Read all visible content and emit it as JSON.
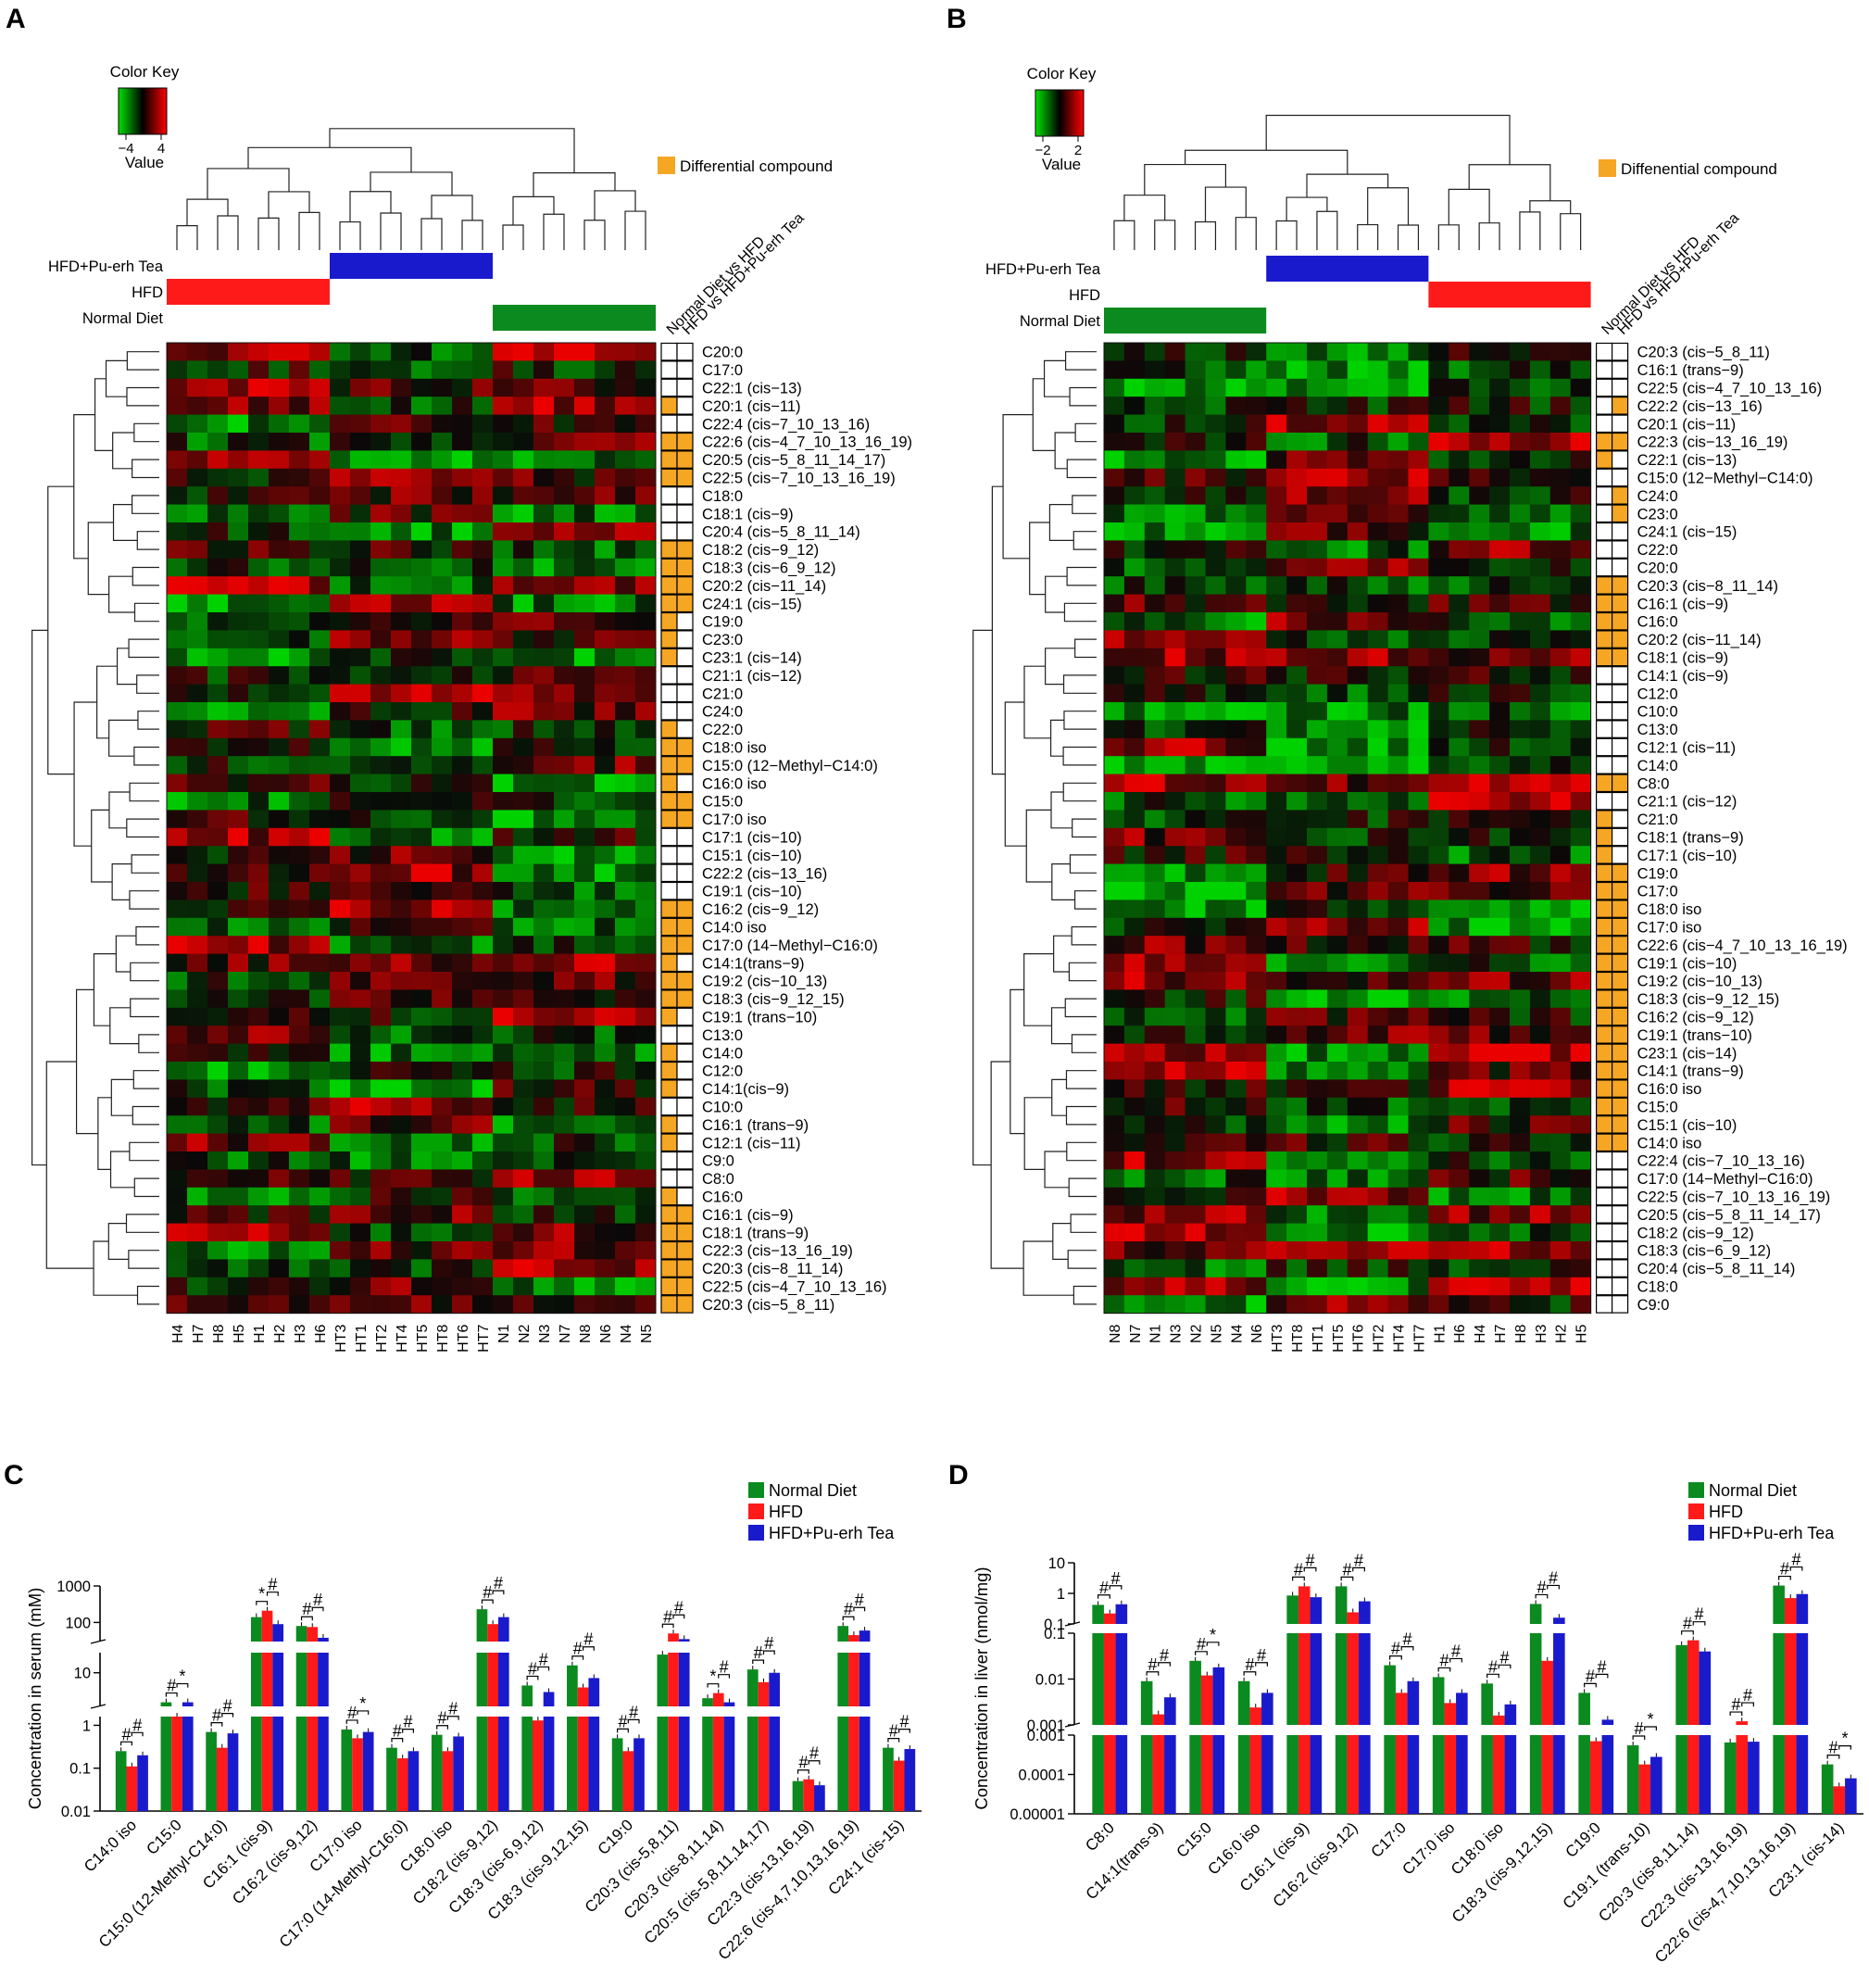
{
  "panel_labels": [
    "A",
    "B",
    "C",
    "D"
  ],
  "colors": {
    "normal": "#0a8a1f",
    "hfd": "#ff1a1a",
    "tea": "#1a1acd",
    "diff": "#f5a623"
  },
  "chart_data": [
    {
      "panel": "A",
      "type": "heatmap",
      "color_key": {
        "title": "Color Key",
        "label": "Value",
        "ticks": [
          "−4",
          "4"
        ]
      },
      "legend": "Differential compound",
      "group_labels": [
        "HFD+Pu-erh Tea",
        "HFD",
        "Normal Diet"
      ],
      "comparison_labels": [
        "Normal Diet vs HFD",
        "HFD vs HFD+Pu-erh Tea"
      ],
      "columns": [
        "H4",
        "H7",
        "H8",
        "H5",
        "H1",
        "H2",
        "H3",
        "H6",
        "HT3",
        "HT1",
        "HT2",
        "HT4",
        "HT5",
        "HT8",
        "HT6",
        "HT7",
        "N1",
        "N2",
        "N3",
        "N7",
        "N8",
        "N6",
        "N4",
        "N5"
      ],
      "column_groups": [
        "HFD",
        "HFD",
        "HFD",
        "HFD",
        "HFD",
        "HFD",
        "HFD",
        "HFD",
        "HFD+Pu-erh Tea",
        "HFD+Pu-erh Tea",
        "HFD+Pu-erh Tea",
        "HFD+Pu-erh Tea",
        "HFD+Pu-erh Tea",
        "HFD+Pu-erh Tea",
        "HFD+Pu-erh Tea",
        "HFD+Pu-erh Tea",
        "Normal Diet",
        "Normal Diet",
        "Normal Diet",
        "Normal Diet",
        "Normal Diet",
        "Normal Diet",
        "Normal Diet",
        "Normal Diet"
      ],
      "rows": [
        "C20:0",
        "C17:0",
        "C22:1 (cis−13)",
        "C20:1 (cis−11)",
        "C22:4 (cis−7_10_13_16)",
        "C22:6 (cis−4_7_10_13_16_19)",
        "C20:5 (cis−5_8_11_14_17)",
        "C22:5 (cis−7_10_13_16_19)",
        "C18:0",
        "C18:1 (cis−9)",
        "C20:4 (cis−5_8_11_14)",
        "C18:2 (cis−9_12)",
        "C18:3 (cis−6_9_12)",
        "C20:2 (cis−11_14)",
        "C24:1 (cis−15)",
        "C19:0",
        "C23:0",
        "C23:1 (cis−14)",
        "C21:1 (cis−12)",
        "C21:0",
        "C24:0",
        "C22:0",
        "C18:0 iso",
        "C15:0 (12−Methyl−C14:0)",
        "C16:0 iso",
        "C15:0",
        "C17:0 iso",
        "C17:1 (cis−10)",
        "C15:1 (cis−10)",
        "C22:2 (cis−13_16)",
        "C19:1 (cis−10)",
        "C16:2 (cis−9_12)",
        "C14:0 iso",
        "C17:0 (14−Methyl−C16:0)",
        "C14:1(trans−9)",
        "C19:2 (cis−10_13)",
        "C18:3 (cis−9_12_15)",
        "C19:1 (trans−10)",
        "C13:0",
        "C14:0",
        "C12:0",
        "C14:1(cis−9)",
        "C10:0",
        "C16:1 (trans−9)",
        "C12:1 (cis−11)",
        "C9:0",
        "C8:0",
        "C16:0",
        "C16:1 (cis−9)",
        "C18:1 (trans−9)",
        "C22:3 (cis−13_16_19)",
        "C20:3 (cis−8_11_14)",
        "C22:5 (cis−4_7_10_13_16)",
        "C20:3 (cis−5_8_11)"
      ],
      "differential": [
        [
          0,
          0
        ],
        [
          0,
          0
        ],
        [
          0,
          0
        ],
        [
          1,
          0
        ],
        [
          0,
          0
        ],
        [
          1,
          1
        ],
        [
          1,
          1
        ],
        [
          1,
          1
        ],
        [
          0,
          0
        ],
        [
          0,
          0
        ],
        [
          0,
          0
        ],
        [
          1,
          1
        ],
        [
          1,
          1
        ],
        [
          1,
          1
        ],
        [
          1,
          1
        ],
        [
          1,
          0
        ],
        [
          1,
          0
        ],
        [
          1,
          0
        ],
        [
          0,
          0
        ],
        [
          0,
          0
        ],
        [
          0,
          0
        ],
        [
          1,
          0
        ],
        [
          1,
          1
        ],
        [
          1,
          1
        ],
        [
          1,
          0
        ],
        [
          1,
          1
        ],
        [
          1,
          1
        ],
        [
          0,
          0
        ],
        [
          0,
          0
        ],
        [
          0,
          0
        ],
        [
          0,
          0
        ],
        [
          1,
          1
        ],
        [
          1,
          1
        ],
        [
          1,
          1
        ],
        [
          1,
          0
        ],
        [
          1,
          1
        ],
        [
          1,
          1
        ],
        [
          1,
          0
        ],
        [
          0,
          0
        ],
        [
          1,
          0
        ],
        [
          1,
          0
        ],
        [
          1,
          0
        ],
        [
          0,
          0
        ],
        [
          1,
          0
        ],
        [
          1,
          0
        ],
        [
          0,
          0
        ],
        [
          0,
          0
        ],
        [
          1,
          0
        ],
        [
          1,
          1
        ],
        [
          1,
          1
        ],
        [
          1,
          1
        ],
        [
          1,
          1
        ],
        [
          1,
          1
        ],
        [
          1,
          1
        ]
      ]
    },
    {
      "panel": "B",
      "type": "heatmap",
      "color_key": {
        "title": "Color Key",
        "label": "Value",
        "ticks": [
          "−2",
          "2"
        ]
      },
      "legend": "Diffenential compound",
      "group_labels": [
        "HFD+Pu-erh Tea",
        "HFD",
        "Normal Diet"
      ],
      "comparison_labels": [
        "Normal Diet vs HFD",
        "HFD vs HFD+Pu-erh Tea"
      ],
      "columns": [
        "N8",
        "N7",
        "N1",
        "N3",
        "N2",
        "N5",
        "N4",
        "N6",
        "HT3",
        "HT8",
        "HT1",
        "HT5",
        "HT6",
        "HT2",
        "HT4",
        "HT7",
        "H1",
        "H6",
        "H4",
        "H7",
        "H8",
        "H3",
        "H2",
        "H5"
      ],
      "column_groups": [
        "Normal Diet",
        "Normal Diet",
        "Normal Diet",
        "Normal Diet",
        "Normal Diet",
        "Normal Diet",
        "Normal Diet",
        "Normal Diet",
        "HFD+Pu-erh Tea",
        "HFD+Pu-erh Tea",
        "HFD+Pu-erh Tea",
        "HFD+Pu-erh Tea",
        "HFD+Pu-erh Tea",
        "HFD+Pu-erh Tea",
        "HFD+Pu-erh Tea",
        "HFD+Pu-erh Tea",
        "HFD",
        "HFD",
        "HFD",
        "HFD",
        "HFD",
        "HFD",
        "HFD",
        "HFD"
      ],
      "rows": [
        "C20:3 (cis−5_8_11)",
        "C16:1 (trans−9)",
        "C22:5 (cis−4_7_10_13_16)",
        "C22:2 (cis−13_16)",
        "C20:1 (cis−11)",
        "C22:3 (cis−13_16_19)",
        "C22:1 (cis−13)",
        "C15:0 (12−Methyl−C14:0)",
        "C24:0",
        "C23:0",
        "C24:1 (cis−15)",
        "C22:0",
        "C20:0",
        "C20:3 (cis−8_11_14)",
        "C16:1 (cis−9)",
        "C16:0",
        "C20:2 (cis−11_14)",
        "C18:1 (cis−9)",
        "C14:1 (cis−9)",
        "C12:0",
        "C10:0",
        "C13:0",
        "C12:1 (cis−11)",
        "C14:0",
        "C8:0",
        "C21:1 (cis−12)",
        "C21:0",
        "C18:1 (trans−9)",
        "C17:1 (cis−10)",
        "C19:0",
        "C17:0",
        "C18:0 iso",
        "C17:0 iso",
        "C22:6 (cis−4_7_10_13_16_19)",
        "C19:1 (cis−10)",
        "C19:2 (cis−10_13)",
        "C18:3 (cis−9_12_15)",
        "C16:2 (cis−9_12)",
        "C19:1 (trans−10)",
        "C23:1 (cis−14)",
        "C14:1 (trans−9)",
        "C16:0 iso",
        "C15:0",
        "C15:1 (cis−10)",
        "C14:0 iso",
        "C22:4 (cis−7_10_13_16)",
        "C17:0 (14−Methyl−C16:0)",
        "C22:5 (cis−7_10_13_16_19)",
        "C20:5 (cis−5_8_11_14_17)",
        "C18:2 (cis−9_12)",
        "C18:3 (cis−6_9_12)",
        "C20:4 (cis−5_8_11_14)",
        "C18:0",
        "C9:0"
      ],
      "differential": [
        [
          0,
          0
        ],
        [
          0,
          0
        ],
        [
          0,
          0
        ],
        [
          0,
          1
        ],
        [
          0,
          0
        ],
        [
          1,
          1
        ],
        [
          1,
          0
        ],
        [
          0,
          0
        ],
        [
          0,
          1
        ],
        [
          0,
          1
        ],
        [
          0,
          0
        ],
        [
          0,
          0
        ],
        [
          0,
          0
        ],
        [
          1,
          1
        ],
        [
          1,
          1
        ],
        [
          1,
          1
        ],
        [
          1,
          1
        ],
        [
          1,
          1
        ],
        [
          0,
          0
        ],
        [
          0,
          0
        ],
        [
          0,
          0
        ],
        [
          0,
          0
        ],
        [
          0,
          0
        ],
        [
          0,
          0
        ],
        [
          1,
          1
        ],
        [
          0,
          0
        ],
        [
          1,
          0
        ],
        [
          1,
          0
        ],
        [
          1,
          0
        ],
        [
          1,
          1
        ],
        [
          1,
          1
        ],
        [
          1,
          1
        ],
        [
          1,
          1
        ],
        [
          1,
          1
        ],
        [
          1,
          1
        ],
        [
          1,
          1
        ],
        [
          1,
          1
        ],
        [
          1,
          1
        ],
        [
          1,
          1
        ],
        [
          1,
          1
        ],
        [
          1,
          1
        ],
        [
          1,
          1
        ],
        [
          1,
          1
        ],
        [
          1,
          1
        ],
        [
          1,
          1
        ],
        [
          0,
          0
        ],
        [
          0,
          0
        ],
        [
          0,
          0
        ],
        [
          0,
          0
        ],
        [
          0,
          0
        ],
        [
          0,
          0
        ],
        [
          0,
          0
        ],
        [
          0,
          0
        ],
        [
          0,
          0
        ]
      ]
    },
    {
      "panel": "C",
      "type": "bar",
      "ylabel": "Concentration in serum (mM)",
      "yscale": "log",
      "ylim": [
        0.01,
        1000
      ],
      "ytick_labels": [
        "0.01",
        "0.1",
        "1",
        "10",
        "100",
        "1000"
      ],
      "legend_position": "top-right",
      "categories": [
        "C14:0 iso",
        "C15:0",
        "C15:0 (12-Methyl-C14:0)",
        "C16:1 (cis-9)",
        "C16:2 (cis-9,12)",
        "C17:0 iso",
        "C17:0 (14-Methyl-C16:0)",
        "C18:0 iso",
        "C18:2 (cis-9,12)",
        "C18:3 (cis-6,9,12)",
        "C18:3 (cis-9,12,15)",
        "C19:0",
        "C20:3 (cis-5,8,11)",
        "C20:3 (cis-8,11,14)",
        "C20:5 (cis-5,8,11,14,17)",
        "C22:3 (cis-13,16,19)",
        "C22:6 (cis-4,7,10,13,16,19)",
        "C24:1 (cis-15)"
      ],
      "series": [
        {
          "name": "Normal Diet",
          "values": [
            0.25,
            2.0,
            0.7,
            140,
            80,
            0.8,
            0.3,
            0.6,
            230,
            5,
            15,
            0.5,
            27,
            2.5,
            12,
            0.05,
            80,
            0.3
          ]
        },
        {
          "name": "HFD",
          "values": [
            0.11,
            1.6,
            0.3,
            210,
            75,
            0.5,
            0.17,
            0.25,
            90,
            1.3,
            4.5,
            0.25,
            50,
            3.3,
            6,
            0.055,
            45,
            0.15
          ]
        },
        {
          "name": "HFD+Pu-erh Tea",
          "values": [
            0.2,
            2.0,
            0.65,
            90,
            38,
            0.7,
            0.25,
            0.55,
            140,
            3.5,
            7.5,
            0.5,
            35,
            2.0,
            10,
            0.04,
            60,
            0.28
          ]
        }
      ],
      "significance": [
        [
          "#",
          "#"
        ],
        [
          "#",
          "*"
        ],
        [
          "#",
          "#"
        ],
        [
          "*",
          "#"
        ],
        [
          "#",
          "#"
        ],
        [
          "#",
          "*"
        ],
        [
          "#",
          "#"
        ],
        [
          "#",
          "#"
        ],
        [
          "#",
          "#"
        ],
        [
          "#",
          "#"
        ],
        [
          "#",
          "#"
        ],
        [
          "#",
          "#"
        ],
        [
          "#",
          "#"
        ],
        [
          "*",
          "#"
        ],
        [
          "#",
          "#"
        ],
        [
          "#",
          "#"
        ],
        [
          "#",
          "#"
        ],
        [
          "#",
          "#"
        ]
      ]
    },
    {
      "panel": "D",
      "type": "bar",
      "ylabel": "Concentration in liver (nmol/mg)",
      "yscale": "log",
      "ylim": [
        1e-05,
        10
      ],
      "ytick_labels": [
        "0.00001",
        "0.0001",
        "0.001",
        "0.001",
        "0.01",
        "0.1",
        "0.1",
        "1",
        "10"
      ],
      "legend_position": "top-right",
      "categories": [
        "C8:0",
        "C14:1(trans-9)",
        "C15:0",
        "C16:0 iso",
        "C16:1 (cis-9)",
        "C16:2 (cis-9,12)",
        "C17:0",
        "C17:0 iso",
        "C18:0 iso",
        "C18:3 (cis-9,12,15)",
        "C19:0",
        "C19:1 (trans-10)",
        "C20:3 (cis-8,11,14)",
        "C22:3 (cis-13,16,19)",
        "C22:6 (cis-4,7,10,13,16,19)",
        "C23:1 (cis-14)"
      ],
      "series": [
        {
          "name": "Normal Diet",
          "values": [
            0.42,
            0.009,
            0.025,
            0.009,
            0.85,
            1.7,
            0.02,
            0.011,
            0.008,
            0.45,
            0.005,
            0.00055,
            0.055,
            0.00065,
            1.8,
            0.00018
          ]
        },
        {
          "name": "HFD",
          "values": [
            0.22,
            0.0017,
            0.012,
            0.0024,
            1.7,
            0.24,
            0.005,
            0.003,
            0.0016,
            0.025,
            0.0007,
            0.00018,
            0.07,
            0.0012,
            0.7,
            5e-05
          ]
        },
        {
          "name": "HFD+Pu-erh Tea",
          "values": [
            0.44,
            0.004,
            0.018,
            0.005,
            0.75,
            0.55,
            0.009,
            0.005,
            0.0028,
            0.16,
            0.0013,
            0.00028,
            0.04,
            0.00068,
            0.95,
            8e-05
          ]
        }
      ],
      "significance": [
        [
          "#",
          "#"
        ],
        [
          "#",
          "#"
        ],
        [
          "#",
          "*"
        ],
        [
          "#",
          "#"
        ],
        [
          "#",
          "#"
        ],
        [
          "#",
          "#"
        ],
        [
          "#",
          "#"
        ],
        [
          "#",
          "#"
        ],
        [
          "#",
          "#"
        ],
        [
          "#",
          "#"
        ],
        [
          "#",
          "#"
        ],
        [
          "#",
          "*"
        ],
        [
          "#",
          "#"
        ],
        [
          "#",
          "#"
        ],
        [
          "#",
          "#"
        ],
        [
          "#",
          "*"
        ]
      ]
    }
  ]
}
